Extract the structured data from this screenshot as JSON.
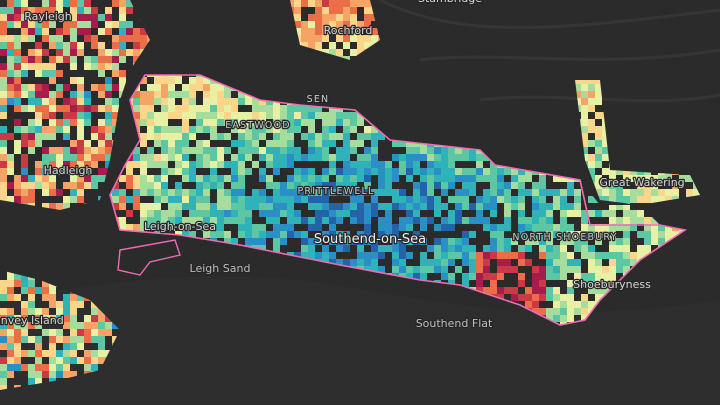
{
  "labels": [
    {
      "text": "Stambridge",
      "style": "normal"
    },
    {
      "text": "Rayleigh",
      "style": "normal"
    },
    {
      "text": "Rochford",
      "style": "normal"
    },
    {
      "text": "SEN",
      "style": "caps"
    },
    {
      "text": "EASTWOOD",
      "style": "caps"
    },
    {
      "text": "Hadleigh",
      "style": "normal"
    },
    {
      "text": "PRITTLEWELL",
      "style": "caps"
    },
    {
      "text": "Great Wakering",
      "style": "normal"
    },
    {
      "text": "Leigh-on-Sea",
      "style": "normal"
    },
    {
      "text": "Southend-on-Sea",
      "style": "big"
    },
    {
      "text": "NORTH SHOEBURY",
      "style": "caps"
    },
    {
      "text": "Leigh Sand",
      "style": "sea"
    },
    {
      "text": "Shoeburyness",
      "style": "normal"
    },
    {
      "text": "Southend Flat",
      "style": "sea"
    },
    {
      "text": "Canvey Island",
      "style": "normal"
    }
  ]
}
